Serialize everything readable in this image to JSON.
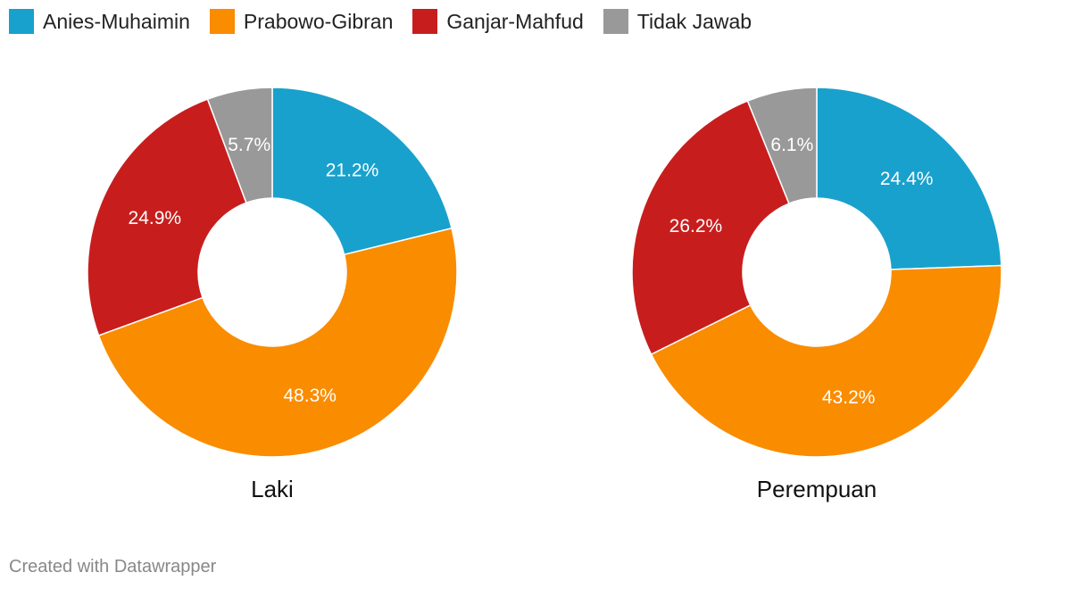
{
  "legend": [
    {
      "label": "Anies-Muhaimin",
      "color": "#18a1cd"
    },
    {
      "label": "Prabowo-Gibran",
      "color": "#fa8c00"
    },
    {
      "label": "Ganjar-Mahfud",
      "color": "#c71e1d"
    },
    {
      "label": "Tidak Jawab",
      "color": "#999999"
    }
  ],
  "chart_data": [
    {
      "type": "pie",
      "donut": true,
      "title": "Laki",
      "slices": [
        {
          "name": "Anies-Muhaimin",
          "value": 21.2,
          "label": "21.2%",
          "color": "#18a1cd"
        },
        {
          "name": "Prabowo-Gibran",
          "value": 48.3,
          "label": "48.3%",
          "color": "#fa8c00"
        },
        {
          "name": "Ganjar-Mahfud",
          "value": 24.9,
          "label": "24.9%",
          "color": "#c71e1d"
        },
        {
          "name": "Tidak Jawab",
          "value": 5.7,
          "label": "5.7%",
          "color": "#999999"
        }
      ]
    },
    {
      "type": "pie",
      "donut": true,
      "title": "Perempuan",
      "slices": [
        {
          "name": "Anies-Muhaimin",
          "value": 24.4,
          "label": "24.4%",
          "color": "#18a1cd"
        },
        {
          "name": "Prabowo-Gibran",
          "value": 43.2,
          "label": "43.2%",
          "color": "#fa8c00"
        },
        {
          "name": "Ganjar-Mahfud",
          "value": 26.2,
          "label": "26.2%",
          "color": "#c71e1d"
        },
        {
          "name": "Tidak Jawab",
          "value": 6.1,
          "label": "6.1%",
          "color": "#999999"
        }
      ]
    }
  ],
  "footer": "Created with Datawrapper"
}
